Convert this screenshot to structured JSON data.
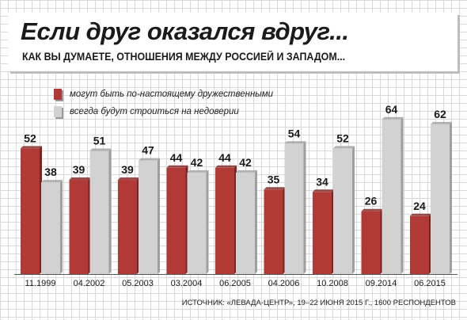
{
  "header": {
    "title": "Если друг оказался вдруг...",
    "subtitle": "КАК ВЫ ДУМАЕТЕ, ОТНОШЕНИЯ МЕЖДУ РОССИЕЙ И ЗАПАДОМ..."
  },
  "source": "ИСТОЧНИК: «ЛЕВАДА-ЦЕНТР», 19–22 ИЮНЯ 2015 Г., 1600 РЕСПОНДЕНТОВ",
  "colors": {
    "series1": "#b23a36",
    "series2": "#d2d2d2",
    "text": "#1a1a1a"
  },
  "chart_data": {
    "type": "bar",
    "categories": [
      "11.1999",
      "04.2002",
      "05.2003",
      "03.2004",
      "06.2005",
      "04.2006",
      "10.2008",
      "09.2014",
      "06.2015"
    ],
    "series": [
      {
        "name": "могут быть по-настоящему дружественными",
        "values": [
          52,
          39,
          39,
          44,
          44,
          35,
          34,
          26,
          24
        ]
      },
      {
        "name": "всегда будут строиться на недоверии",
        "values": [
          38,
          51,
          47,
          42,
          42,
          54,
          52,
          64,
          62
        ]
      }
    ],
    "ylim": [
      0,
      70
    ],
    "legend": "top-left",
    "grid": true
  }
}
